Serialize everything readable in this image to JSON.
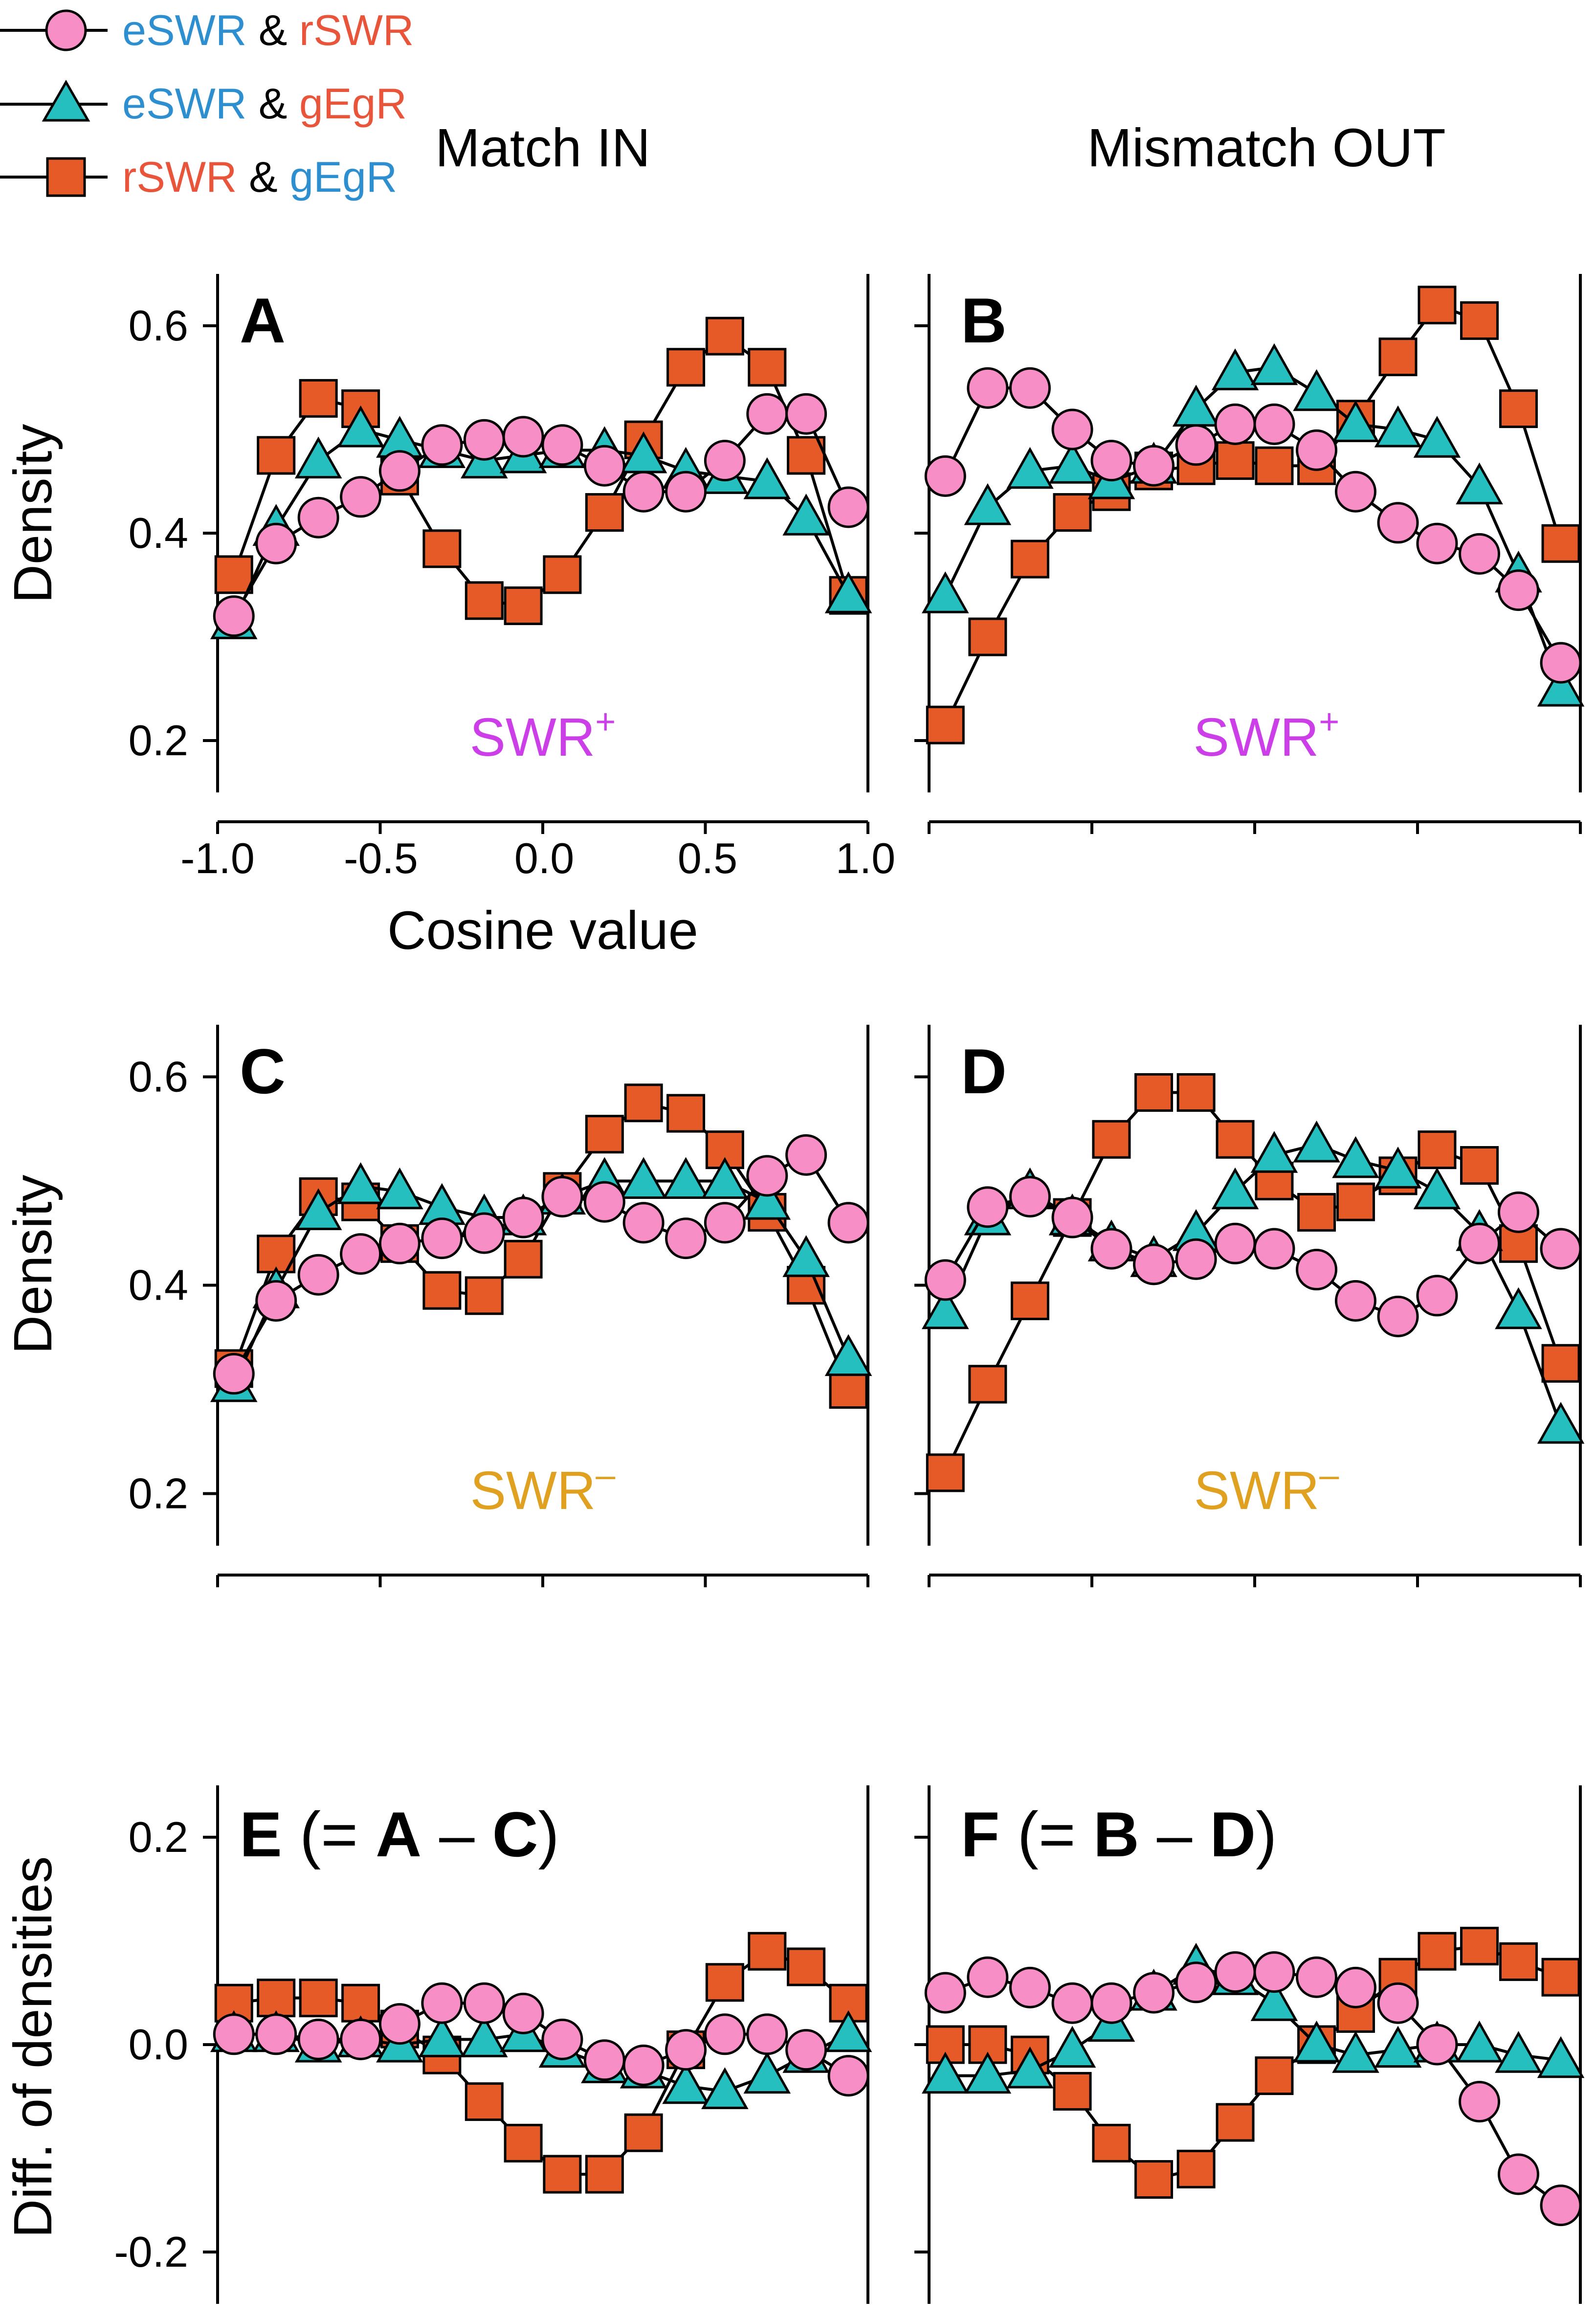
{
  "legend": {
    "items": [
      {
        "marker": "circle",
        "parts": [
          {
            "text": "eSWR",
            "color": "#2e8fd0"
          },
          {
            "text": " & ",
            "color": "#000000"
          },
          {
            "text": "rSWR",
            "color": "#e8553a"
          }
        ]
      },
      {
        "marker": "triangle",
        "parts": [
          {
            "text": "eSWR",
            "color": "#2e8fd0"
          },
          {
            "text": " & ",
            "color": "#000000"
          },
          {
            "text": "gEgR",
            "color": "#e8553a"
          }
        ]
      },
      {
        "marker": "square",
        "parts": [
          {
            "text": "rSWR",
            "color": "#e8553a"
          },
          {
            "text": " & ",
            "color": "#000000"
          },
          {
            "text": "gEgR",
            "color": "#2e8fd0"
          }
        ]
      }
    ]
  },
  "columns": {
    "left": "Match IN",
    "right": "Mismatch OUT"
  },
  "labels": {
    "density": "Density",
    "diff": "Diff. of densities",
    "cosine": "Cosine value",
    "swr_plus_base": "SWR",
    "swr_plus_sup": "+",
    "swr_minus_base": "SWR",
    "swr_minus_sup": "–",
    "panel_E": {
      "letter1": "E",
      "mid": " (= ",
      "letter2": "A",
      "dash": " – ",
      "letter3": "C",
      "close": ")"
    },
    "panel_F": {
      "letter1": "F",
      "mid": " (= ",
      "letter2": "B",
      "dash": " – ",
      "letter3": "D",
      "close": ")"
    }
  },
  "colors": {
    "circle_fill": "#f78fc6",
    "triangle_fill": "#26bfc0",
    "square_fill": "#e65a28",
    "swr_plus": "#cc3fe8",
    "swr_minus": "#e0a020"
  },
  "chart_data": [
    {
      "panel": "A",
      "type": "line",
      "condition": "SWR+",
      "xlabel": "Cosine value",
      "ylabel": "Density",
      "xlim": [
        -1,
        1
      ],
      "ylim": [
        0.15,
        0.65
      ],
      "yticks": [
        0.2,
        0.4,
        0.6
      ],
      "xticks": [
        -1.0,
        -0.5,
        0.0,
        0.5,
        1.0
      ],
      "x": [
        -0.95,
        -0.82,
        -0.69,
        -0.56,
        -0.44,
        -0.31,
        -0.18,
        -0.06,
        0.06,
        0.19,
        0.31,
        0.44,
        0.56,
        0.69,
        0.81,
        0.94
      ],
      "series": [
        {
          "name": "eSWR & rSWR",
          "marker": "circle",
          "values": [
            0.32,
            0.39,
            0.415,
            0.435,
            0.46,
            0.485,
            0.49,
            0.493,
            0.485,
            0.465,
            0.44,
            0.44,
            0.47,
            0.515,
            0.515,
            0.425
          ]
        },
        {
          "name": "eSWR & gEgR",
          "marker": "triangle",
          "values": [
            0.315,
            0.405,
            0.47,
            0.5,
            0.49,
            0.48,
            0.47,
            0.475,
            0.48,
            0.48,
            0.475,
            0.46,
            0.455,
            0.45,
            0.415,
            0.34
          ]
        },
        {
          "name": "rSWR & gEgR",
          "marker": "square",
          "values": [
            0.36,
            0.475,
            0.53,
            0.52,
            0.455,
            0.385,
            0.335,
            0.33,
            0.36,
            0.42,
            0.49,
            0.56,
            0.59,
            0.56,
            0.475,
            0.34
          ]
        }
      ]
    },
    {
      "panel": "B",
      "type": "line",
      "condition": "SWR+",
      "ylabel": "",
      "xlim": [
        -1,
        1
      ],
      "ylim": [
        0.15,
        0.65
      ],
      "x": [
        -0.95,
        -0.82,
        -0.69,
        -0.56,
        -0.44,
        -0.31,
        -0.18,
        -0.06,
        0.06,
        0.19,
        0.31,
        0.44,
        0.56,
        0.69,
        0.81,
        0.94
      ],
      "series": [
        {
          "name": "eSWR & rSWR",
          "marker": "circle",
          "values": [
            0.455,
            0.54,
            0.54,
            0.5,
            0.47,
            0.465,
            0.485,
            0.505,
            0.505,
            0.48,
            0.44,
            0.41,
            0.39,
            0.38,
            0.345,
            0.275
          ]
        },
        {
          "name": "eSWR & gEgR",
          "marker": "triangle",
          "values": [
            0.34,
            0.425,
            0.46,
            0.465,
            0.45,
            0.465,
            0.52,
            0.555,
            0.56,
            0.535,
            0.505,
            0.5,
            0.49,
            0.445,
            0.36,
            0.25
          ]
        },
        {
          "name": "rSWR & gEgR",
          "marker": "square",
          "values": [
            0.215,
            0.3,
            0.375,
            0.42,
            0.44,
            0.46,
            0.465,
            0.47,
            0.465,
            0.465,
            0.51,
            0.57,
            0.62,
            0.605,
            0.52,
            0.39
          ]
        }
      ]
    },
    {
      "panel": "C",
      "type": "line",
      "condition": "SWR-",
      "ylabel": "Density",
      "xlim": [
        -1,
        1
      ],
      "ylim": [
        0.15,
        0.65
      ],
      "x": [
        -0.95,
        -0.82,
        -0.69,
        -0.56,
        -0.44,
        -0.31,
        -0.18,
        -0.06,
        0.06,
        0.19,
        0.31,
        0.44,
        0.56,
        0.69,
        0.81,
        0.94
      ],
      "series": [
        {
          "name": "eSWR & rSWR",
          "marker": "circle",
          "values": [
            0.315,
            0.385,
            0.41,
            0.43,
            0.44,
            0.445,
            0.45,
            0.465,
            0.485,
            0.48,
            0.46,
            0.445,
            0.46,
            0.505,
            0.525,
            0.46
          ]
        },
        {
          "name": "eSWR & gEgR",
          "marker": "triangle",
          "values": [
            0.305,
            0.395,
            0.47,
            0.495,
            0.49,
            0.475,
            0.465,
            0.465,
            0.485,
            0.5,
            0.5,
            0.5,
            0.5,
            0.48,
            0.425,
            0.33
          ]
        },
        {
          "name": "rSWR & gEgR",
          "marker": "square",
          "values": [
            0.32,
            0.43,
            0.485,
            0.48,
            0.44,
            0.395,
            0.39,
            0.425,
            0.49,
            0.545,
            0.575,
            0.565,
            0.53,
            0.47,
            0.4,
            0.3
          ]
        }
      ]
    },
    {
      "panel": "D",
      "type": "line",
      "condition": "SWR-",
      "ylabel": "",
      "xlim": [
        -1,
        1
      ],
      "ylim": [
        0.15,
        0.65
      ],
      "x": [
        -0.95,
        -0.82,
        -0.69,
        -0.56,
        -0.44,
        -0.31,
        -0.18,
        -0.06,
        0.06,
        0.19,
        0.31,
        0.44,
        0.56,
        0.69,
        0.81,
        0.94
      ],
      "series": [
        {
          "name": "eSWR & rSWR",
          "marker": "circle",
          "values": [
            0.405,
            0.475,
            0.485,
            0.465,
            0.435,
            0.42,
            0.425,
            0.44,
            0.435,
            0.415,
            0.385,
            0.37,
            0.39,
            0.44,
            0.47,
            0.435
          ]
        },
        {
          "name": "eSWR & gEgR",
          "marker": "triangle",
          "values": [
            0.375,
            0.465,
            0.49,
            0.465,
            0.44,
            0.425,
            0.45,
            0.49,
            0.525,
            0.535,
            0.52,
            0.51,
            0.49,
            0.45,
            0.375,
            0.265
          ]
        },
        {
          "name": "rSWR & gEgR",
          "marker": "square",
          "values": [
            0.22,
            0.305,
            0.385,
            0.465,
            0.54,
            0.585,
            0.585,
            0.54,
            0.5,
            0.47,
            0.48,
            0.505,
            0.53,
            0.515,
            0.44,
            0.325
          ]
        }
      ]
    },
    {
      "panel": "E",
      "type": "line",
      "ylabel": "Diff. of densities",
      "xlim": [
        -1,
        1
      ],
      "ylim": [
        -0.25,
        0.25
      ],
      "yticks": [
        -0.2,
        0.0,
        0.2
      ],
      "x": [
        -0.95,
        -0.82,
        -0.69,
        -0.56,
        -0.44,
        -0.31,
        -0.18,
        -0.06,
        0.06,
        0.19,
        0.31,
        0.44,
        0.56,
        0.69,
        0.81,
        0.94
      ],
      "series": [
        {
          "name": "eSWR & rSWR",
          "marker": "circle",
          "values": [
            0.01,
            0.01,
            0.005,
            0.005,
            0.02,
            0.04,
            0.04,
            0.03,
            0.005,
            -0.015,
            -0.02,
            -0.005,
            0.01,
            0.01,
            -0.005,
            -0.03
          ]
        },
        {
          "name": "eSWR & gEgR",
          "marker": "triangle",
          "values": [
            0.01,
            0.01,
            0.0,
            0.005,
            0.0,
            0.005,
            0.005,
            0.01,
            -0.005,
            -0.02,
            -0.025,
            -0.04,
            -0.045,
            -0.03,
            -0.01,
            0.01
          ]
        },
        {
          "name": "rSWR & gEgR",
          "marker": "square",
          "values": [
            0.04,
            0.045,
            0.045,
            0.04,
            0.015,
            -0.01,
            -0.055,
            -0.095,
            -0.125,
            -0.125,
            -0.085,
            -0.005,
            0.06,
            0.09,
            0.075,
            0.04
          ]
        }
      ]
    },
    {
      "panel": "F",
      "type": "line",
      "ylabel": "",
      "xlim": [
        -1,
        1
      ],
      "ylim": [
        -0.25,
        0.25
      ],
      "x": [
        -0.95,
        -0.82,
        -0.69,
        -0.56,
        -0.44,
        -0.31,
        -0.18,
        -0.06,
        0.06,
        0.19,
        0.31,
        0.44,
        0.56,
        0.69,
        0.81,
        0.94
      ],
      "series": [
        {
          "name": "eSWR & rSWR",
          "marker": "circle",
          "values": [
            0.05,
            0.065,
            0.055,
            0.04,
            0.04,
            0.05,
            0.06,
            0.07,
            0.07,
            0.065,
            0.055,
            0.04,
            0.0,
            -0.055,
            -0.125,
            -0.155
          ]
        },
        {
          "name": "eSWR & gEgR",
          "marker": "triangle",
          "values": [
            -0.03,
            -0.03,
            -0.025,
            -0.005,
            0.02,
            0.05,
            0.075,
            0.065,
            0.04,
            0.0,
            -0.01,
            -0.005,
            0.0,
            0.0,
            -0.01,
            -0.015
          ]
        },
        {
          "name": "rSWR & gEgR",
          "marker": "square",
          "values": [
            0.0,
            0.0,
            -0.01,
            -0.045,
            -0.095,
            -0.13,
            -0.12,
            -0.075,
            -0.03,
            0.0,
            0.03,
            0.065,
            0.09,
            0.095,
            0.08,
            0.065
          ]
        }
      ]
    }
  ]
}
